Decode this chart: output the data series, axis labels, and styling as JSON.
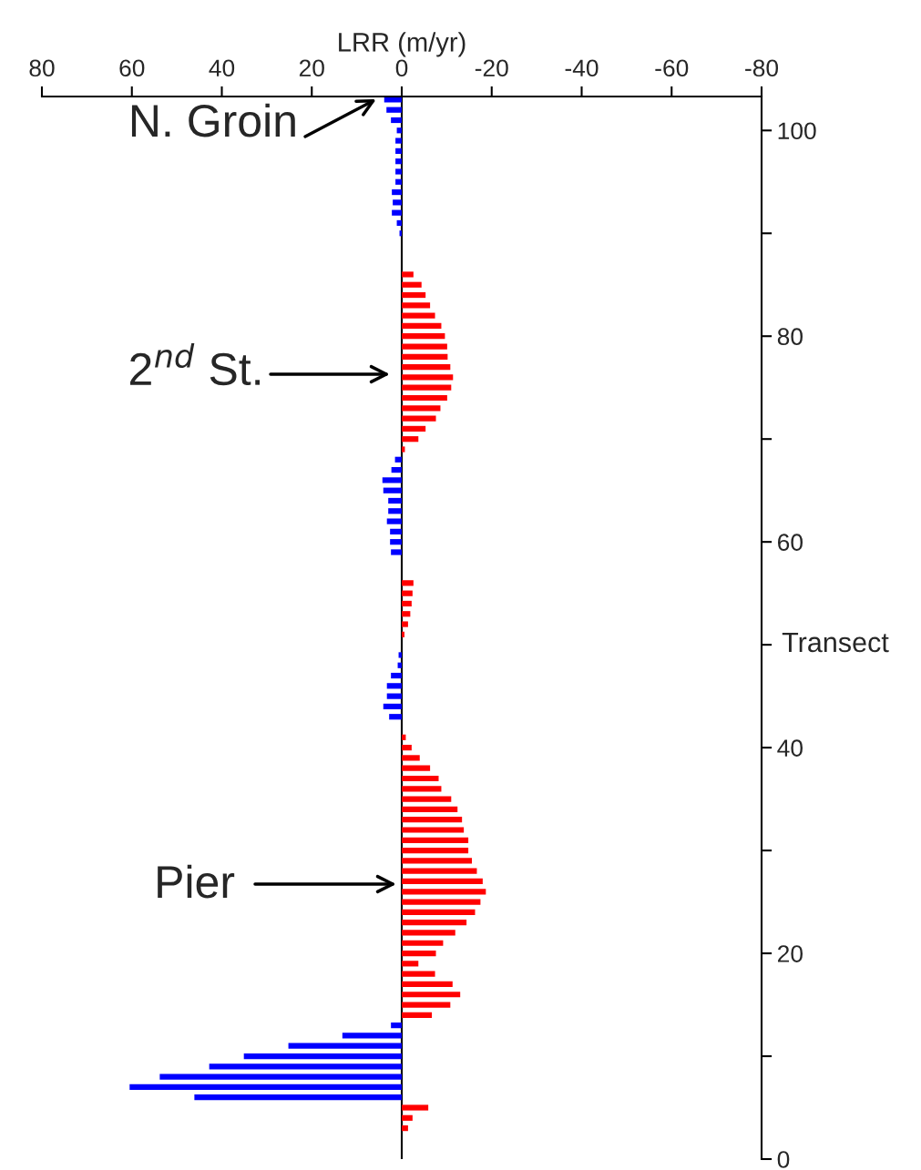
{
  "chart_data": {
    "type": "bar",
    "orientation": "horizontal",
    "xlabel": "LRR (m/yr)",
    "ylabel": "Transect",
    "x": [
      3,
      4,
      5,
      6,
      7,
      8,
      9,
      10,
      11,
      12,
      13,
      14,
      15,
      16,
      17,
      18,
      19,
      20,
      21,
      22,
      23,
      24,
      25,
      26,
      27,
      28,
      29,
      30,
      31,
      32,
      33,
      34,
      35,
      36,
      37,
      38,
      39,
      40,
      41,
      43,
      44,
      45,
      46,
      47,
      48,
      49,
      51,
      52,
      53,
      54,
      55,
      56,
      59,
      60,
      61,
      62,
      63,
      64,
      65,
      66,
      67,
      68,
      69,
      70,
      71,
      72,
      73,
      74,
      75,
      76,
      77,
      78,
      79,
      80,
      81,
      82,
      83,
      84,
      85,
      86,
      90,
      91,
      92,
      93,
      94,
      95,
      96,
      97,
      98,
      99,
      100,
      101,
      102,
      103
    ],
    "values": [
      -1.4,
      -2.4,
      -5.9,
      46.1,
      60.5,
      53.8,
      42.8,
      35.1,
      25.2,
      13.2,
      2.4,
      -6.7,
      -10.8,
      -13.0,
      -11.3,
      -7.4,
      -3.7,
      -7.6,
      -9.2,
      -11.9,
      -14.4,
      -16.3,
      -17.5,
      -18.7,
      -18.0,
      -16.7,
      -15.6,
      -14.8,
      -14.8,
      -13.8,
      -13.4,
      -12.4,
      -11.0,
      -8.8,
      -8.2,
      -6.3,
      -4.0,
      -2.2,
      -0.9,
      2.8,
      4.1,
      3.3,
      3.3,
      2.4,
      0.9,
      0.7,
      -0.6,
      -1.4,
      -1.9,
      -2.2,
      -2.4,
      -2.6,
      2.4,
      2.6,
      2.6,
      3.3,
      3.0,
      3.0,
      4.1,
      4.3,
      2.3,
      1.5,
      -0.7,
      -3.7,
      -5.3,
      -7.6,
      -8.6,
      -10.1,
      -11.0,
      -11.4,
      -10.8,
      -10.2,
      -10.1,
      -9.6,
      -8.8,
      -7.4,
      -6.3,
      -5.3,
      -4.4,
      -2.6,
      0.5,
      1.1,
      2.2,
      2.0,
      2.2,
      1.4,
      1.4,
      1.4,
      1.4,
      1.4,
      1.1,
      2.4,
      3.4,
      3.9
    ],
    "colors": [
      "#ff0000",
      "#ff0000",
      "#ff0000",
      "#0000ff",
      "#0000ff",
      "#0000ff",
      "#0000ff",
      "#0000ff",
      "#0000ff",
      "#0000ff",
      "#0000ff",
      "#ff0000",
      "#ff0000",
      "#ff0000",
      "#ff0000",
      "#ff0000",
      "#ff0000",
      "#ff0000",
      "#ff0000",
      "#ff0000",
      "#ff0000",
      "#ff0000",
      "#ff0000",
      "#ff0000",
      "#ff0000",
      "#ff0000",
      "#ff0000",
      "#ff0000",
      "#ff0000",
      "#ff0000",
      "#ff0000",
      "#ff0000",
      "#ff0000",
      "#ff0000",
      "#ff0000",
      "#ff0000",
      "#ff0000",
      "#ff0000",
      "#ff0000",
      "#0000ff",
      "#0000ff",
      "#0000ff",
      "#0000ff",
      "#0000ff",
      "#0000ff",
      "#0000ff",
      "#ff0000",
      "#ff0000",
      "#ff0000",
      "#ff0000",
      "#ff0000",
      "#ff0000",
      "#0000ff",
      "#0000ff",
      "#0000ff",
      "#0000ff",
      "#0000ff",
      "#0000ff",
      "#0000ff",
      "#0000ff",
      "#0000ff",
      "#0000ff",
      "#ff0000",
      "#ff0000",
      "#ff0000",
      "#ff0000",
      "#ff0000",
      "#ff0000",
      "#ff0000",
      "#ff0000",
      "#ff0000",
      "#ff0000",
      "#ff0000",
      "#ff0000",
      "#ff0000",
      "#ff0000",
      "#ff0000",
      "#ff0000",
      "#ff0000",
      "#ff0000",
      "#0000ff",
      "#0000ff",
      "#0000ff",
      "#0000ff",
      "#0000ff",
      "#0000ff",
      "#0000ff",
      "#0000ff",
      "#0000ff",
      "#0000ff",
      "#0000ff",
      "#0000ff",
      "#0000ff",
      "#0000ff"
    ],
    "xlim": [
      80,
      -80
    ],
    "xticks": [
      80,
      60,
      40,
      20,
      0,
      -20,
      -40,
      -60,
      -80
    ],
    "ylim": [
      0,
      103.3
    ],
    "yticks": [
      0,
      {
        "value": 10,
        "label": null
      },
      20,
      {
        "value": 30,
        "label": null
      },
      40,
      {
        "value": 50,
        "label": null
      },
      60,
      {
        "value": 70,
        "label": null
      },
      80,
      {
        "value": 90,
        "label": null
      },
      100
    ],
    "ref_lines": [
      {
        "axis": "x",
        "value": 0,
        "color": "#000000"
      }
    ],
    "annotations": [
      "N. Groin",
      "2$^{nd}$ St.",
      "Pier"
    ],
    "grid": false
  }
}
